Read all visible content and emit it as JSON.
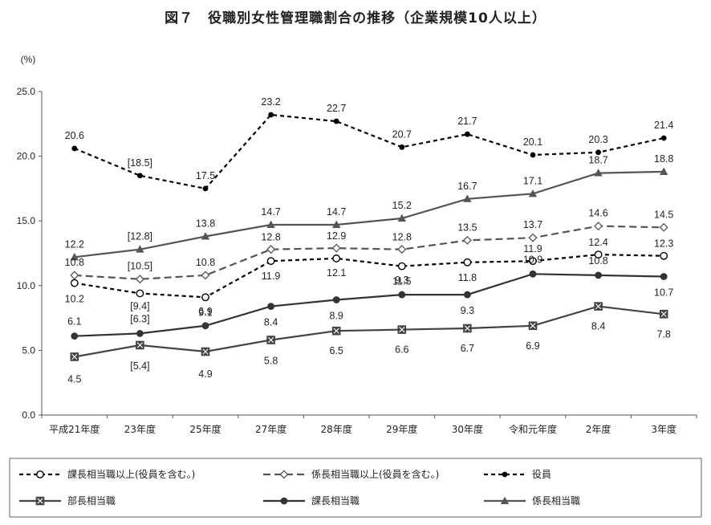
{
  "title": "図７　役職別女性管理職割合の推移（企業規模10人以上）",
  "chart_data": {
    "type": "line",
    "unit_label": "(%)",
    "ylim": [
      0,
      25
    ],
    "yticks": [
      "0.0",
      "5.0",
      "10.0",
      "15.0",
      "20.0",
      "25.0"
    ],
    "categories": [
      "平成21年度",
      "23年度",
      "25年度",
      "27年度",
      "28年度",
      "29年度",
      "30年度",
      "令和元年度",
      "2年度",
      "3年度"
    ],
    "legend_position": "bottom",
    "grid": false,
    "series": [
      {
        "name": "課長相当職以上(役員を含む。)",
        "line": "dashed",
        "color": "#000000",
        "marker": "circle-open",
        "values": [
          10.2,
          9.4,
          9.1,
          11.9,
          12.1,
          11.5,
          11.8,
          11.9,
          12.4,
          12.3
        ],
        "labels": [
          "10.2",
          "[9.4]",
          "9.1",
          "11.9",
          "12.1",
          "11.5",
          "11.8",
          "11.9",
          "12.4",
          "12.3"
        ]
      },
      {
        "name": "係長相当職以上(役員を含む。)",
        "line": "dashed",
        "color": "#555555",
        "marker": "diamond-open",
        "values": [
          10.8,
          10.5,
          10.8,
          12.8,
          12.9,
          12.8,
          13.5,
          13.7,
          14.6,
          14.5
        ],
        "labels": [
          "10.8",
          "[10.5]",
          "10.8",
          "12.8",
          "12.9",
          "12.8",
          "13.5",
          "13.7",
          "14.6",
          "14.5"
        ]
      },
      {
        "name": "役員",
        "line": "dashed",
        "color": "#000000",
        "marker": "dot-filled",
        "values": [
          20.6,
          18.5,
          17.5,
          23.2,
          22.7,
          20.7,
          21.7,
          20.1,
          20.3,
          21.4
        ],
        "labels": [
          "20.6",
          "[18.5]",
          "17.5",
          "23.2",
          "22.7",
          "20.7",
          "21.7",
          "20.1",
          "20.3",
          "21.4"
        ]
      },
      {
        "name": "部長相当職",
        "line": "solid",
        "color": "#444444",
        "marker": "square-cross",
        "values": [
          4.5,
          5.4,
          4.9,
          5.8,
          6.5,
          6.6,
          6.7,
          6.9,
          8.4,
          7.8
        ],
        "labels": [
          "4.5",
          "[5.4]",
          "4.9",
          "5.8",
          "6.5",
          "6.6",
          "6.7",
          "6.9",
          "8.4",
          "7.8"
        ]
      },
      {
        "name": "課長相当職",
        "line": "solid",
        "color": "#333333",
        "marker": "circle-filled",
        "values": [
          6.1,
          6.3,
          6.9,
          8.4,
          8.9,
          9.3,
          9.3,
          10.9,
          10.8,
          10.7
        ],
        "labels": [
          "6.1",
          "[6.3]",
          "6.9",
          "8.4",
          "8.9",
          "9.3",
          "9.3",
          "10.9",
          "10.8",
          "10.7"
        ]
      },
      {
        "name": "係長相当職",
        "line": "solid",
        "color": "#555555",
        "marker": "triangle-filled",
        "values": [
          12.2,
          12.8,
          13.8,
          14.7,
          14.7,
          15.2,
          16.7,
          17.1,
          18.7,
          18.8
        ],
        "labels": [
          "12.2",
          "[12.8]",
          "13.8",
          "14.7",
          "14.7",
          "15.2",
          "16.7",
          "17.1",
          "18.7",
          "18.8"
        ]
      }
    ]
  }
}
